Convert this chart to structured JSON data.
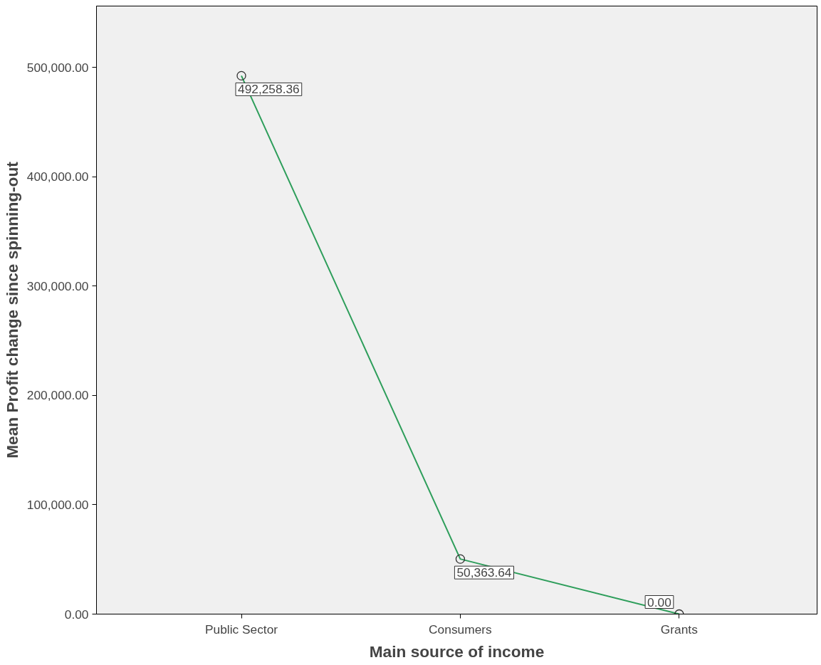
{
  "chart_data": {
    "type": "line",
    "xlabel": "Main source of income",
    "ylabel": "Mean Profit change since spinning-out",
    "categories": [
      "Public Sector",
      "Consumers",
      "Grants"
    ],
    "series": [
      {
        "color": "#2e9e5b",
        "values": [
          492258.36,
          50363.64,
          0.0
        ],
        "value_labels": [
          "492,258.36",
          "50,363.64",
          "0.00"
        ]
      }
    ],
    "ylim": [
      0,
      556000
    ],
    "yticks": [
      {
        "value": 0,
        "label": "0.00"
      },
      {
        "value": 100000,
        "label": "100,000.00"
      },
      {
        "value": 200000,
        "label": "200,000.00"
      },
      {
        "value": 300000,
        "label": "300,000.00"
      },
      {
        "value": 400000,
        "label": "400,000.00"
      },
      {
        "value": 500000,
        "label": "500,000.00"
      }
    ],
    "marker": "circle",
    "line_style": "solid",
    "grid": false
  }
}
